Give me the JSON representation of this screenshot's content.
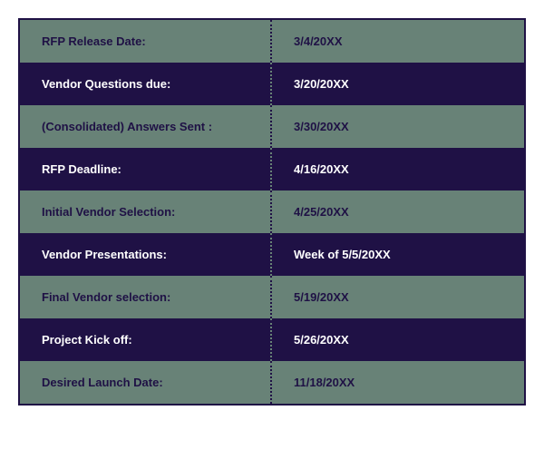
{
  "schedule": {
    "type": "table",
    "columns": [
      "label",
      "date"
    ],
    "border_color": "#1f1145",
    "row_colors": {
      "odd_bg": "#688277",
      "odd_text": "#1f1145",
      "odd_divider": "#1f1145",
      "even_bg": "#1f1145",
      "even_text": "#ffffff",
      "even_divider": "#688277"
    },
    "font_weight": 700,
    "font_size": 13,
    "cell_padding": "16px 24px",
    "rows": [
      {
        "label": "RFP Release Date:",
        "date": "3/4/20XX"
      },
      {
        "label": "Vendor Questions due:",
        "date": "3/20/20XX"
      },
      {
        "label": "(Consolidated) Answers Sent :",
        "date": "3/30/20XX"
      },
      {
        "label": "RFP Deadline:",
        "date": "4/16/20XX"
      },
      {
        "label": "Initial Vendor Selection:",
        "date": "4/25/20XX"
      },
      {
        "label": "Vendor Presentations:",
        "date": "Week of 5/5/20XX"
      },
      {
        "label": "Final Vendor selection:",
        "date": "5/19/20XX"
      },
      {
        "label": "Project Kick off:",
        "date": "5/26/20XX"
      },
      {
        "label": "Desired Launch Date:",
        "date": "11/18/20XX"
      }
    ]
  }
}
